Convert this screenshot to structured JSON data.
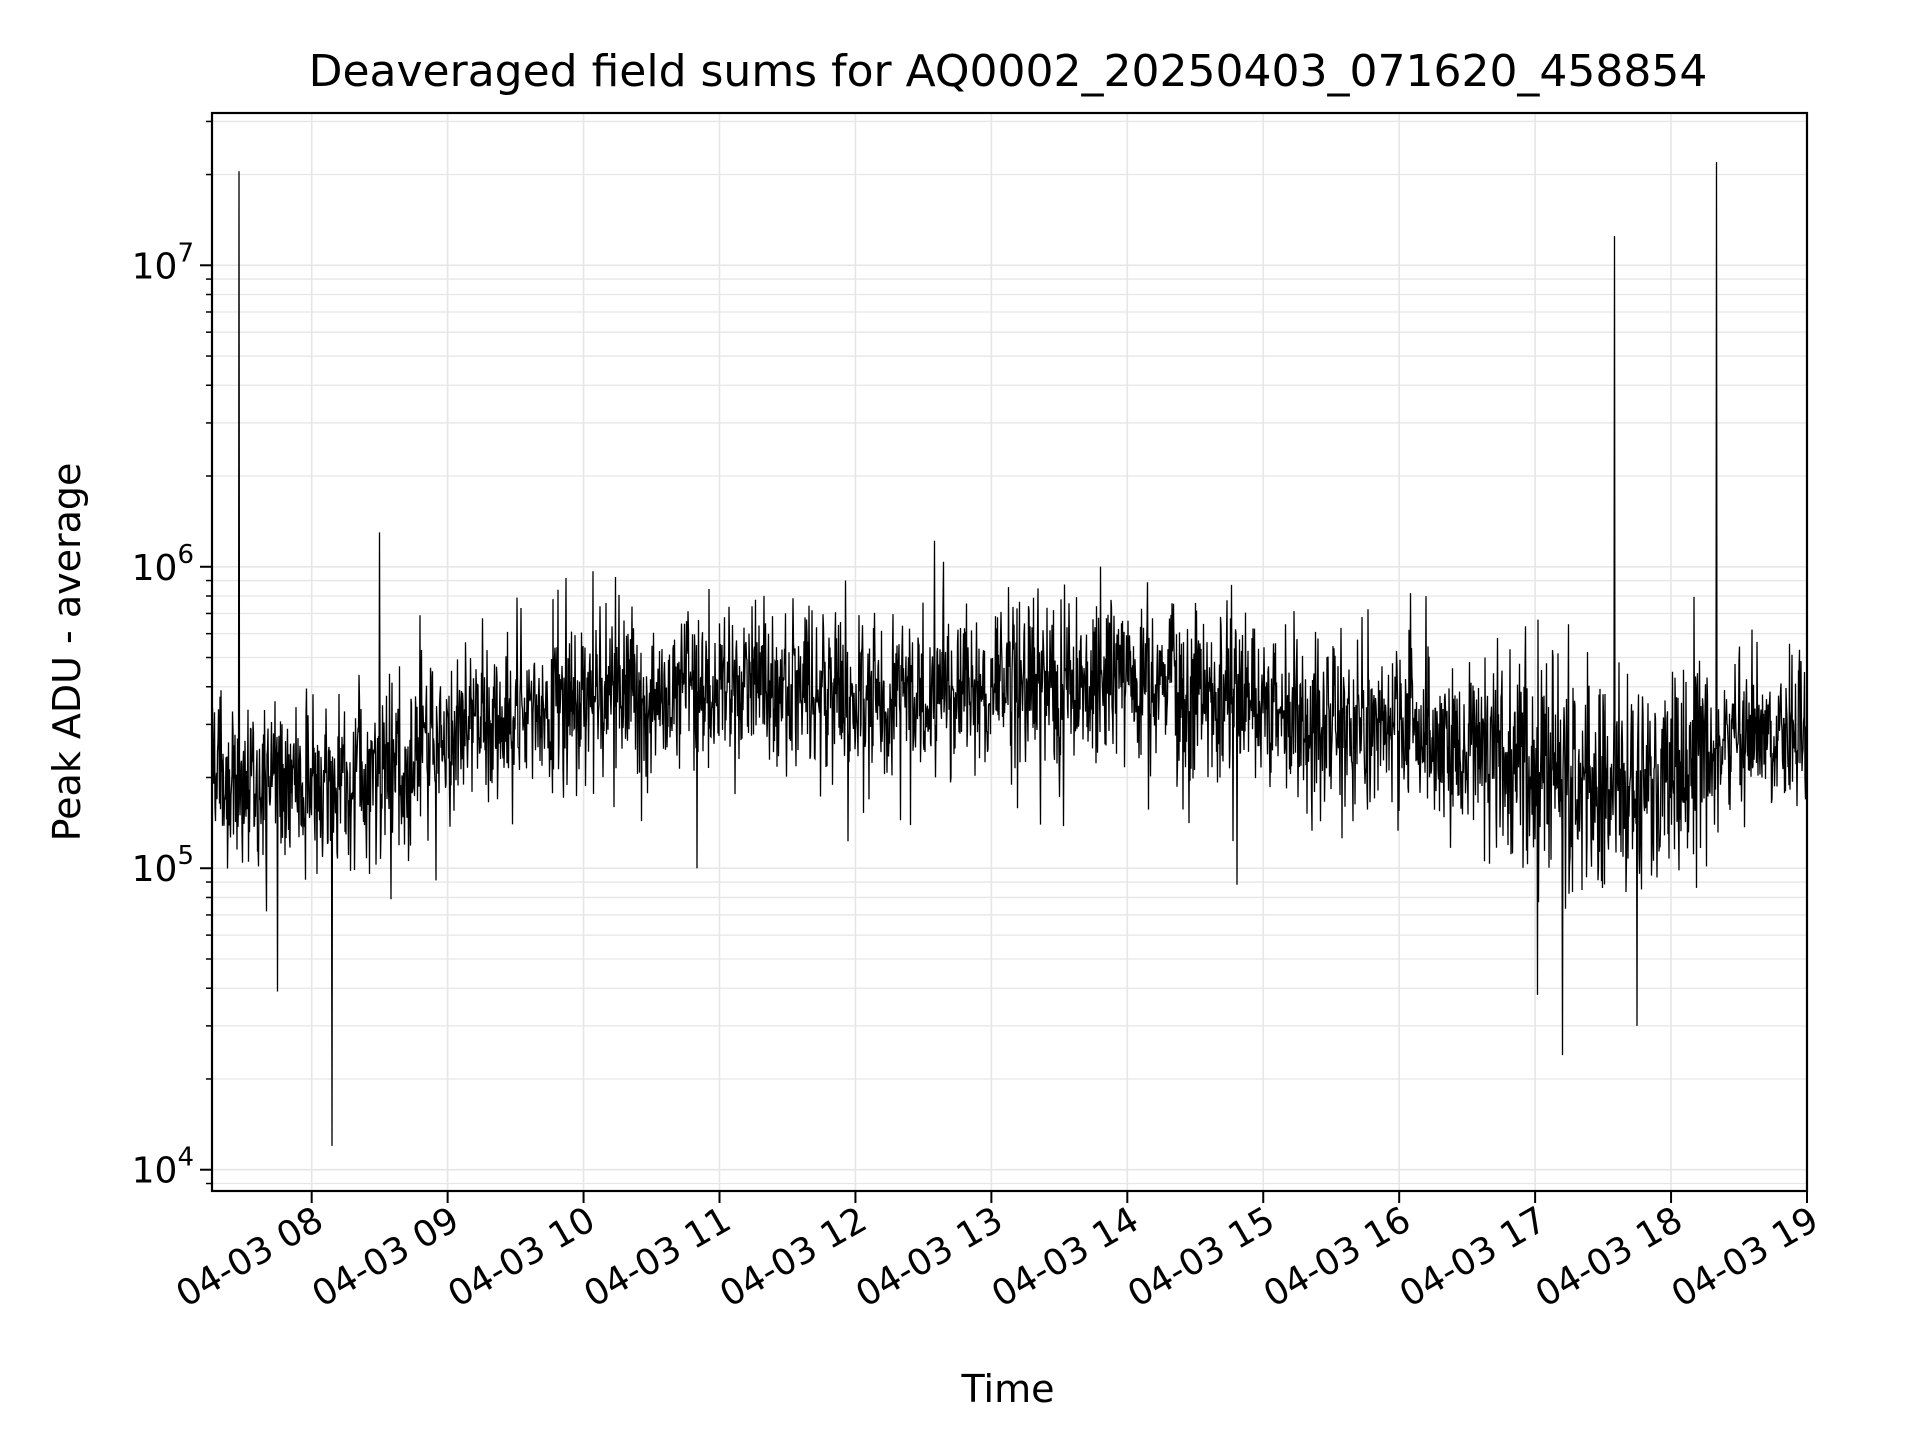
{
  "chart_data": {
    "type": "line",
    "title": "Deaveraged field sums for AQ0002_20250403_071620_458854",
    "xlabel": "Time",
    "ylabel": "Peak ADU - average",
    "yscale": "log",
    "ylim": [
      8500,
      32000000
    ],
    "xlim": [
      "04-03 07:16",
      "04-03 19:00"
    ],
    "x_ticks": [
      "04-03 08",
      "04-03 09",
      "04-03 10",
      "04-03 11",
      "04-03 12",
      "04-03 13",
      "04-03 14",
      "04-03 15",
      "04-03 16",
      "04-03 17",
      "04-03 18",
      "04-03 19"
    ],
    "y_ticks": [
      {
        "base": "10",
        "exp": "4",
        "value": 10000
      },
      {
        "base": "10",
        "exp": "5",
        "value": 100000
      },
      {
        "base": "10",
        "exp": "6",
        "value": 1000000
      },
      {
        "base": "10",
        "exp": "7",
        "value": 10000000
      }
    ],
    "grid": true,
    "line_color": "#000000",
    "grid_color": "#e6e6e6",
    "series": [
      {
        "trend": [
          {
            "x": "04-03 07:16",
            "y": 200000
          },
          {
            "x": "04-03 08:00",
            "y": 180000
          },
          {
            "x": "04-03 08:30",
            "y": 190000
          },
          {
            "x": "04-03 09:00",
            "y": 280000
          },
          {
            "x": "04-03 10:00",
            "y": 340000
          },
          {
            "x": "04-03 11:00",
            "y": 420000
          },
          {
            "x": "04-03 12:00",
            "y": 360000
          },
          {
            "x": "04-03 13:00",
            "y": 380000
          },
          {
            "x": "04-03 14:00",
            "y": 420000
          },
          {
            "x": "04-03 15:00",
            "y": 340000
          },
          {
            "x": "04-03 16:00",
            "y": 290000
          },
          {
            "x": "04-03 16:45",
            "y": 230000
          },
          {
            "x": "04-03 17:30",
            "y": 180000
          },
          {
            "x": "04-03 18:00",
            "y": 200000
          },
          {
            "x": "04-03 18:30",
            "y": 280000
          },
          {
            "x": "04-03 19:00",
            "y": 300000
          }
        ],
        "spikes": [
          {
            "x": "04-03 07:28",
            "y": 20500000
          },
          {
            "x": "04-03 08:30",
            "y": 1300000
          },
          {
            "x": "04-03 12:35",
            "y": 1220000
          },
          {
            "x": "04-03 17:35",
            "y": 12500000
          },
          {
            "x": "04-03 18:20",
            "y": 22000000
          }
        ],
        "dips": [
          {
            "x": "04-03 08:09",
            "y": 12000
          },
          {
            "x": "04-03 17:12",
            "y": 24000
          },
          {
            "x": "04-03 07:45",
            "y": 39000
          },
          {
            "x": "04-03 17:45",
            "y": 30000
          },
          {
            "x": "04-03 17:01",
            "y": 38000
          },
          {
            "x": "04-03 10:50",
            "y": 100000
          }
        ]
      }
    ]
  }
}
